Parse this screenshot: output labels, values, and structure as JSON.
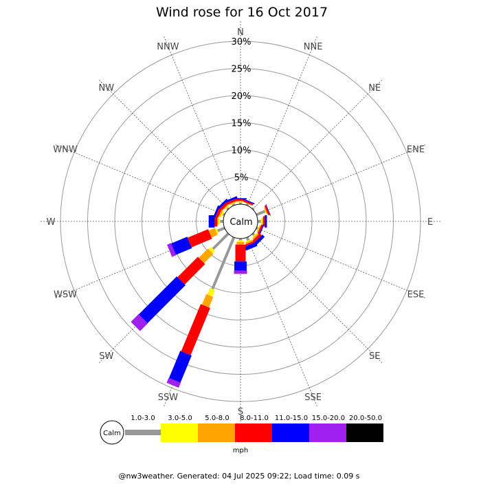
{
  "chart_data": {
    "type": "wind-rose",
    "title": "Wind rose for 16 Oct 2017",
    "directions": [
      "N",
      "NNE",
      "NE",
      "ENE",
      "E",
      "ESE",
      "SE",
      "SSE",
      "S",
      "SSW",
      "SW",
      "WSW",
      "W",
      "WNW",
      "NW",
      "NNW"
    ],
    "radial_ticks": [
      "5%",
      "10%",
      "15%",
      "20%",
      "25%",
      "30%"
    ],
    "radial_max": 30,
    "calm_label": "Calm",
    "unit_label": "mph",
    "speed_bins": [
      {
        "label": "1.0-3.0",
        "color": "#999999"
      },
      {
        "label": "3.0-5.0",
        "color": "#ffff00"
      },
      {
        "label": "5.0-8.0",
        "color": "#ffa500"
      },
      {
        "label": "8.0-11.0",
        "color": "#ff0000"
      },
      {
        "label": "11.0-15.0",
        "color": "#0000ff"
      },
      {
        "label": "15.0-20.0",
        "color": "#a020f0"
      },
      {
        "label": "20.0-50.0",
        "color": "#000000"
      }
    ],
    "series_cumulative_percent": {
      "N": [
        0.3,
        0.4,
        0.6,
        0.9,
        1.1,
        1.1,
        1.1
      ],
      "NNE": [
        0.3,
        0.3,
        0.4,
        0.7,
        0.9,
        0.9,
        0.9
      ],
      "NE": [
        0.3,
        0.3,
        0.3,
        0.3,
        0.3,
        0.3,
        0.3
      ],
      "ENE": [
        1.7,
        1.8,
        2.0,
        2.3,
        2.4,
        2.4,
        2.4
      ],
      "E": [
        0.6,
        0.8,
        1.0,
        1.3,
        1.7,
        1.7,
        1.7
      ],
      "ESE": [
        0.3,
        0.4,
        0.6,
        0.9,
        1.1,
        1.1,
        1.1
      ],
      "SE": [
        0.4,
        0.6,
        0.9,
        1.4,
        2.0,
        2.0,
        2.0
      ],
      "SSE": [
        0.6,
        0.8,
        1.1,
        1.4,
        2.2,
        2.2,
        2.2
      ],
      "S": [
        0.3,
        0.6,
        1.1,
        4.2,
        5.9,
        6.5,
        6.5
      ],
      "SSW": [
        10.3,
        11.6,
        13.7,
        23.1,
        28.5,
        29.5,
        29.5
      ],
      "SW": [
        4.0,
        4.6,
        7.0,
        12.3,
        22.2,
        24.2,
        24.2
      ],
      "WSW": [
        1.4,
        1.7,
        2.9,
        7.0,
        10.2,
        11.0,
        11.0
      ],
      "W": [
        0.6,
        0.9,
        1.1,
        1.6,
        2.7,
        2.7,
        2.7
      ],
      "WNW": [
        0.3,
        0.6,
        0.9,
        1.4,
        1.8,
        1.8,
        1.8
      ],
      "NW": [
        0.3,
        0.5,
        0.7,
        1.2,
        1.6,
        1.6,
        1.6
      ],
      "NNW": [
        0.3,
        0.4,
        0.6,
        1.0,
        1.4,
        1.4,
        1.4
      ]
    },
    "grid": true,
    "legend": "bottom"
  },
  "footer": "@nw3weather. Generated: 04 Jul 2025 09:22; Load time: 0.09 s"
}
